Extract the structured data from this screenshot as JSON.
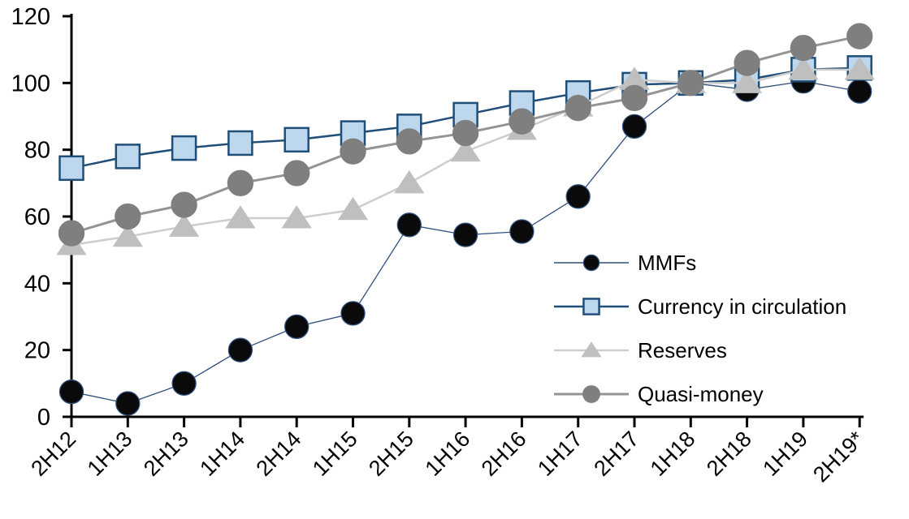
{
  "chart_data": {
    "type": "line",
    "title": "",
    "xlabel": "",
    "ylabel": "",
    "categories": [
      "2H12",
      "1H13",
      "2H13",
      "1H14",
      "2H14",
      "1H15",
      "2H15",
      "1H16",
      "2H16",
      "1H17",
      "2H17",
      "1H18",
      "2H18",
      "1H19",
      "2H19*"
    ],
    "series": [
      {
        "name": "MMFs",
        "marker": "circle",
        "marker_color": "#0a0a0a",
        "marker_border": "#2f4e7c",
        "line_color": "#2f4e7c",
        "line_width": 1.3,
        "marker_size": 29,
        "values": [
          7.5,
          4,
          10,
          20,
          27,
          31,
          57.5,
          54.5,
          55.5,
          66,
          87,
          100,
          98,
          100.5,
          97.5
        ]
      },
      {
        "name": "Currency in circulation",
        "marker": "square",
        "marker_color": "#bdd7ee",
        "marker_border": "#1f4e79",
        "line_color": "#1f4e79",
        "line_width": 2.5,
        "marker_size": 29,
        "values": [
          74.5,
          78,
          80.5,
          82,
          83,
          85,
          87,
          90.5,
          94,
          97,
          99.5,
          100,
          101,
          104,
          104.5
        ]
      },
      {
        "name": "Reserves",
        "marker": "triangle",
        "marker_color": "#bfbfbf",
        "marker_border": "#bfbfbf",
        "line_color": "#cdcdcd",
        "line_width": 2.5,
        "marker_size": 30,
        "values": [
          51.5,
          54,
          57,
          59.5,
          59.5,
          62,
          70,
          79.5,
          86,
          93,
          101,
          100,
          100,
          104,
          104
        ]
      },
      {
        "name": "Quasi-money",
        "marker": "circle",
        "marker_color": "#7f7f7f",
        "marker_border": "#7f7f7f",
        "line_color": "#949494",
        "line_width": 3,
        "marker_size": 31,
        "values": [
          55,
          60,
          63.5,
          70,
          73,
          79.5,
          82.5,
          85,
          88.5,
          92.5,
          95.5,
          100,
          106,
          110.5,
          114
        ]
      }
    ],
    "ylim": [
      0,
      120
    ],
    "y_ticks": [
      0,
      20,
      40,
      60,
      80,
      100,
      120
    ],
    "grid": false,
    "legend_position": "middle-right",
    "axis_color": "#000000",
    "background_color": "#ffffff"
  }
}
